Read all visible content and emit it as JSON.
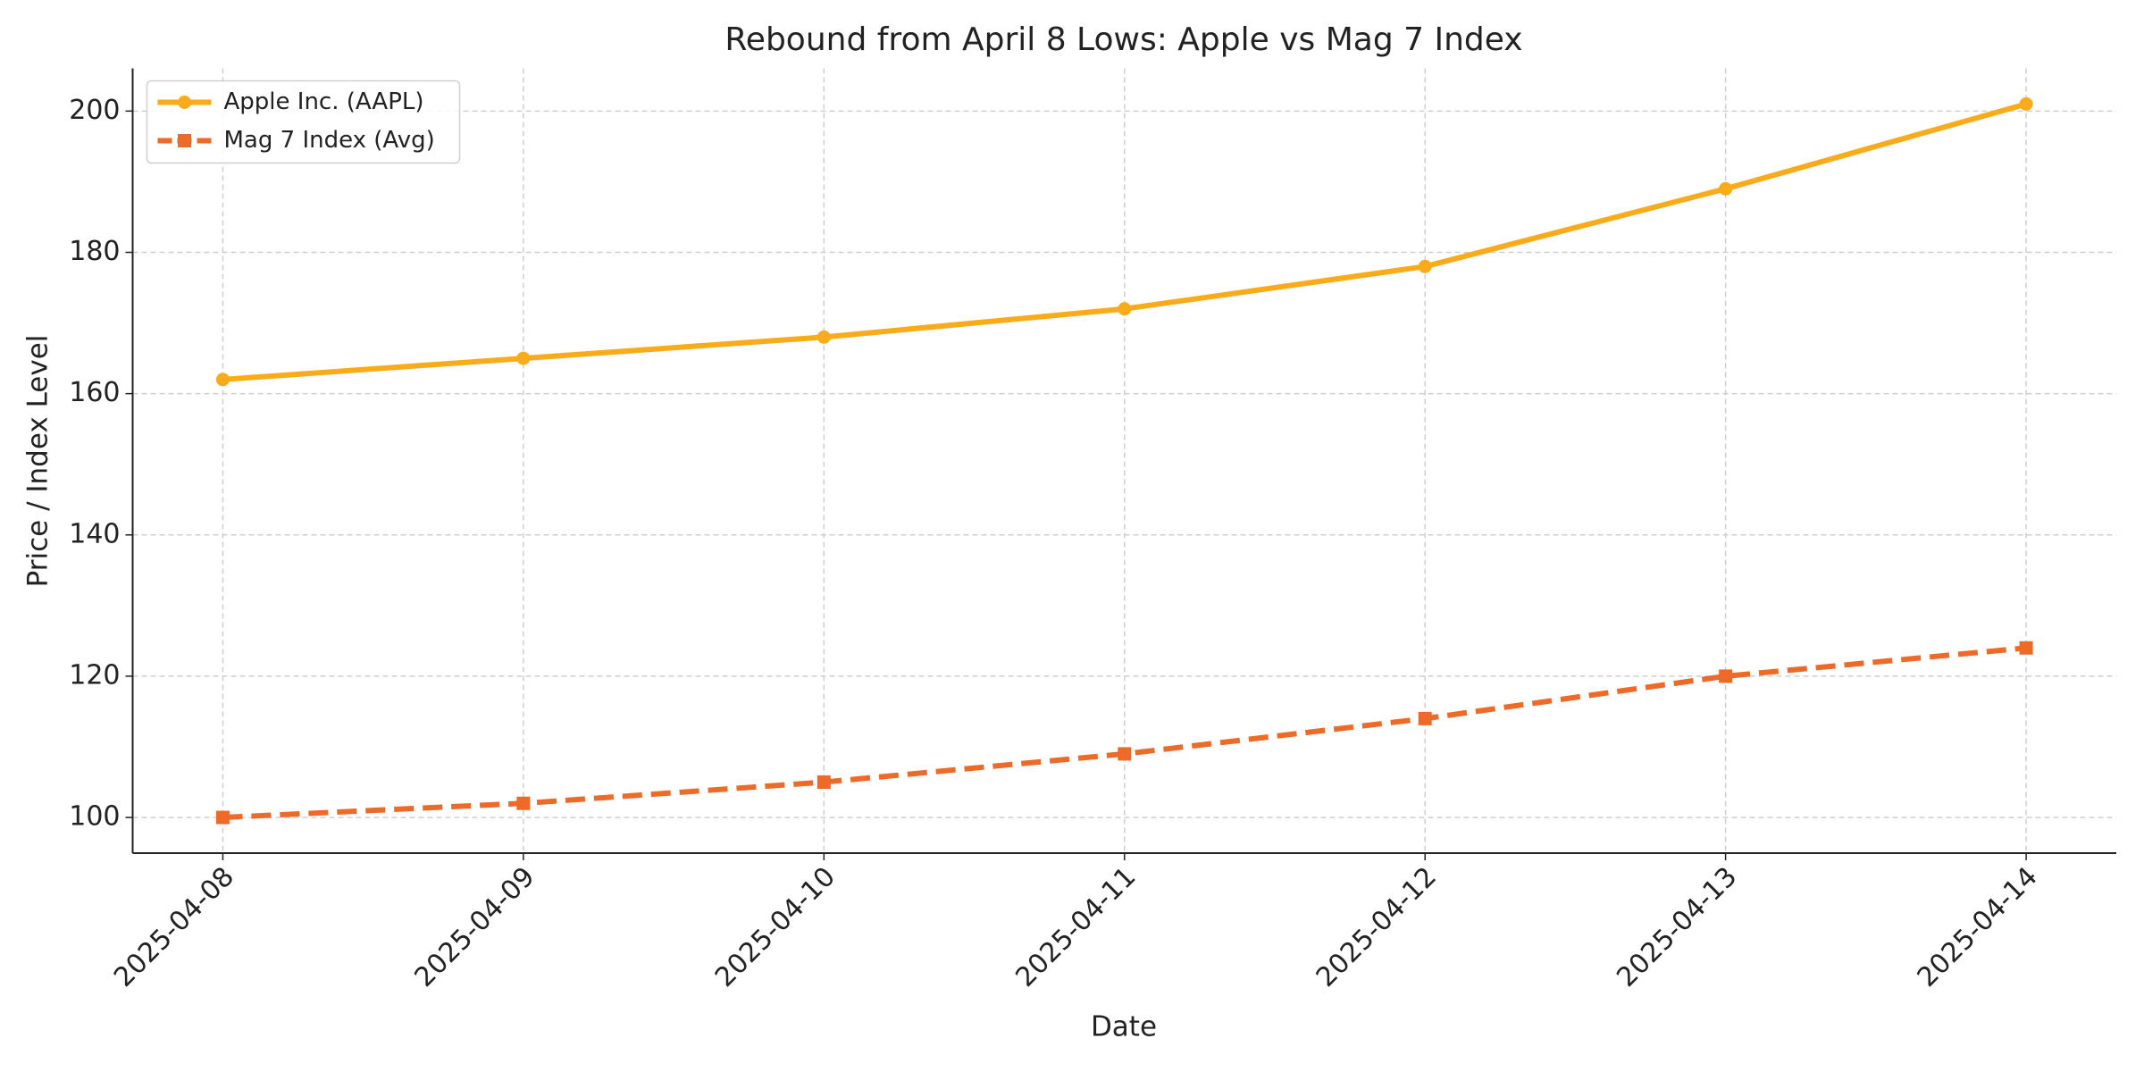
{
  "chart_data": {
    "type": "line",
    "title": "Rebound from April 8 Lows: Apple vs Mag 7 Index",
    "x_label": "Date",
    "y_label": "Price / Index Level",
    "x": [
      "2025-04-08",
      "2025-04-09",
      "2025-04-10",
      "2025-04-11",
      "2025-04-12",
      "2025-04-13",
      "2025-04-14"
    ],
    "series": [
      {
        "name": "Apple Inc. (AAPL)",
        "color": "#f9ab1a",
        "marker": "circle",
        "dash": "solid",
        "values": [
          162,
          165,
          168,
          172,
          178,
          189,
          201
        ]
      },
      {
        "name": "Mag 7 Index (Avg)",
        "color": "#ee6a28",
        "marker": "square",
        "dash": "dashed",
        "values": [
          100,
          102,
          105,
          109,
          114,
          120,
          124
        ]
      }
    ],
    "ylim": [
      94.95,
      206.05
    ],
    "yticks": [
      100,
      120,
      140,
      160,
      180,
      200
    ],
    "grid": true,
    "legend": "upper-left"
  }
}
